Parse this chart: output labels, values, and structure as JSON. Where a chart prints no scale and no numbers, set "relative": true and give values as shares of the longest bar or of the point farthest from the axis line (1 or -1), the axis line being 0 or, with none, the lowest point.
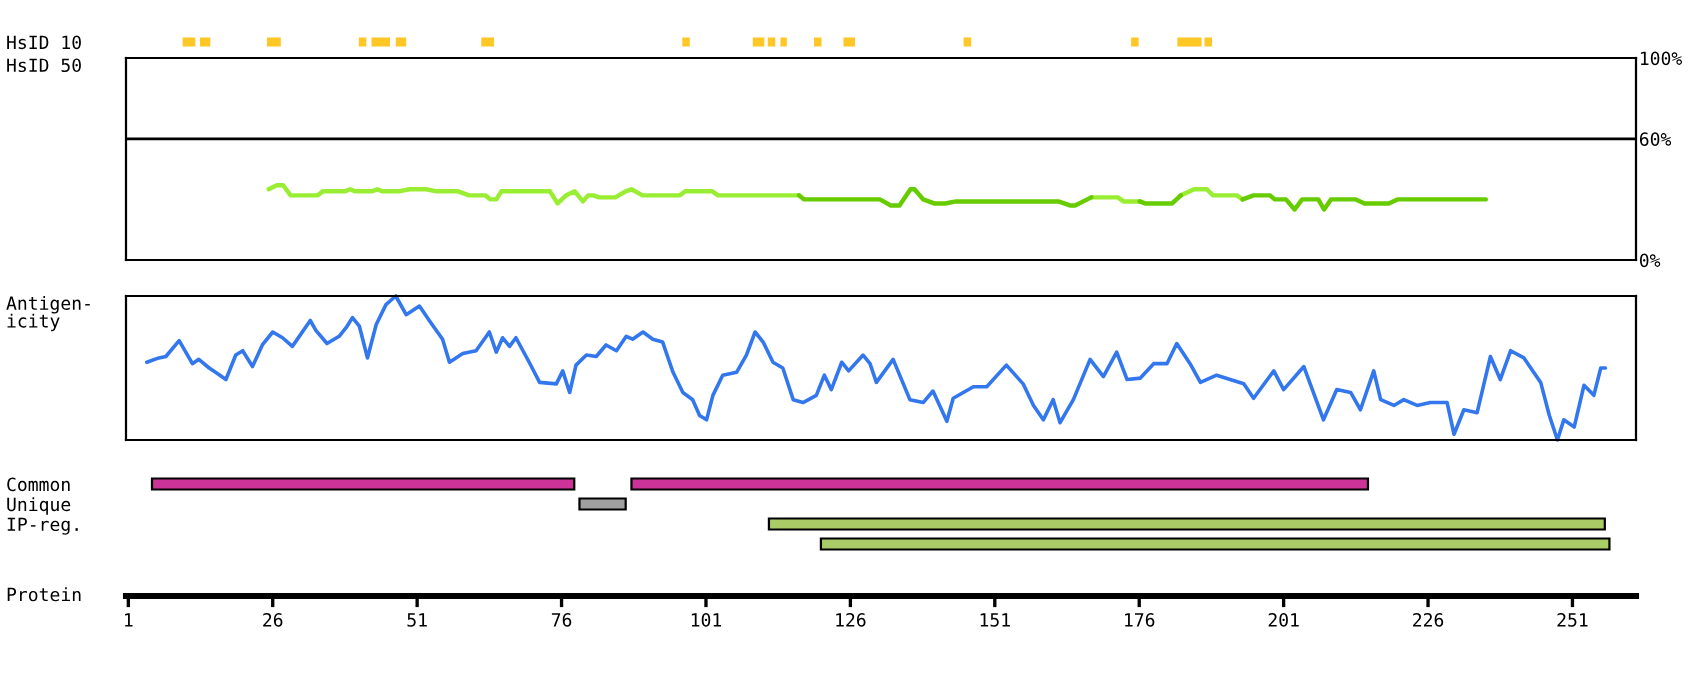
{
  "chart_data": [
    {
      "type": "bar",
      "orientation": "horizontal",
      "categories": [
        "HsID 10"
      ],
      "xlim": [
        0.6,
        262
      ],
      "tick_labels": "y",
      "series": [
        {
          "color": "#ffc726",
          "base": [
            10.4
          ],
          "values": [
            2.2
          ]
        },
        {
          "color": "#ffc726",
          "base": [
            13.4
          ],
          "values": [
            1.8
          ]
        },
        {
          "color": "#ffc726",
          "base": [
            25.0
          ],
          "values": [
            2.4
          ]
        },
        {
          "color": "#ffc726",
          "base": [
            40.9
          ],
          "values": [
            1.3
          ]
        },
        {
          "color": "#ffc726",
          "base": [
            43.1
          ],
          "values": [
            3.2
          ]
        },
        {
          "color": "#ffc726",
          "base": [
            47.3
          ],
          "values": [
            1.8
          ]
        },
        {
          "color": "#ffc726",
          "base": [
            62.1
          ],
          "values": [
            2.2
          ]
        },
        {
          "color": "#ffc726",
          "base": [
            96.9
          ],
          "values": [
            1.3
          ]
        },
        {
          "color": "#ffc726",
          "base": [
            109.1
          ],
          "values": [
            2.0
          ]
        },
        {
          "color": "#ffc726",
          "base": [
            111.7
          ],
          "values": [
            1.3
          ]
        },
        {
          "color": "#ffc726",
          "base": [
            113.9
          ],
          "values": [
            1.1
          ]
        },
        {
          "color": "#ffc726",
          "base": [
            119.7
          ],
          "values": [
            1.3
          ]
        },
        {
          "color": "#ffc726",
          "base": [
            124.8
          ],
          "values": [
            2.0
          ]
        },
        {
          "color": "#ffc726",
          "base": [
            145.6
          ],
          "values": [
            1.3
          ]
        },
        {
          "color": "#ffc726",
          "base": [
            174.6
          ],
          "values": [
            1.3
          ]
        },
        {
          "color": "#ffc726",
          "base": [
            182.6
          ],
          "values": [
            4.2
          ]
        },
        {
          "color": "#ffc726",
          "base": [
            187.3
          ],
          "values": [
            1.3
          ]
        }
      ]
    },
    {
      "type": "line",
      "ylabel": "HsID 50",
      "xlim": [
        0.6,
        262
      ],
      "ylim": [
        0,
        100
      ],
      "yticks": [
        {
          "value": 0,
          "label": "0%"
        },
        {
          "value": 60,
          "label": "60%"
        },
        {
          "value": 100,
          "label": "100%"
        }
      ],
      "tick_labels": "y",
      "ref_lines": [
        {
          "axis": "y",
          "value": 60,
          "color": "#000000"
        }
      ],
      "x": [
        25.3,
        26.7,
        27.8,
        29.1,
        33.8,
        34.7,
        38.5,
        39.4,
        40.3,
        43.1,
        44.1,
        45.0,
        47.8,
        49.7,
        52.5,
        54.4,
        58.1,
        60.0,
        62.8,
        63.7,
        64.7,
        65.6,
        74.0,
        75.3,
        76.8,
        78.3,
        79.7,
        80.6,
        81.5,
        82.5,
        85.3,
        87.1,
        88.1,
        90.0,
        96.5,
        97.4,
        102.1,
        103.1,
        117.1,
        118.0,
        131.1,
        133.0,
        134.5,
        136.4,
        137.1,
        138.6,
        140.5,
        142.4,
        144.3,
        162.0,
        164.0,
        164.9,
        167.7,
        172.3,
        173.3,
        176.1,
        177.0,
        181.7,
        183.2,
        185.5,
        187.7,
        188.8,
        192.9,
        193.9,
        195.8,
        198.6,
        199.5,
        201.4,
        202.9,
        204.2,
        207.0,
        208.0,
        209.2,
        213.5,
        215.0,
        219.2,
        220.7,
        236.0
      ],
      "series": [
        {
          "color": "#99ee33",
          "values": [
            35,
            37,
            37,
            32,
            32,
            34,
            34,
            35,
            34,
            34,
            35,
            34,
            34,
            35,
            35,
            34,
            34,
            32,
            32,
            30,
            30,
            34,
            34,
            28,
            32,
            34,
            29,
            32,
            32,
            31,
            31,
            34,
            35,
            32,
            32,
            34,
            34,
            32,
            32,
            null,
            null,
            null,
            null,
            null,
            null,
            null,
            null,
            null,
            null,
            null,
            null,
            null,
            31,
            31,
            29,
            29,
            null,
            null,
            32,
            35,
            35,
            32,
            32,
            30,
            null,
            null,
            null,
            null,
            null,
            null,
            null,
            null,
            null,
            null,
            null,
            null,
            null,
            null
          ]
        },
        {
          "color": "#66cc00",
          "values": [
            null,
            null,
            null,
            null,
            null,
            null,
            null,
            null,
            null,
            null,
            null,
            null,
            null,
            null,
            null,
            null,
            null,
            null,
            null,
            null,
            null,
            null,
            null,
            null,
            null,
            null,
            null,
            null,
            null,
            null,
            null,
            null,
            null,
            null,
            null,
            null,
            null,
            null,
            32,
            30,
            30,
            27,
            27,
            35,
            35,
            30,
            28,
            28,
            29,
            29,
            27,
            27,
            31,
            null,
            null,
            29,
            28,
            28,
            32,
            null,
            null,
            null,
            null,
            30,
            32,
            32,
            30,
            30,
            25,
            30,
            30,
            25,
            30,
            30,
            28,
            28,
            30,
            30
          ]
        }
      ]
    },
    {
      "type": "line",
      "ylabel": "Antigen-\nicity",
      "relative": true,
      "xlim": [
        0.6,
        262
      ],
      "tick_labels": false,
      "x": [
        4.2,
        6.3,
        7.5,
        9.8,
        12.1,
        13.2,
        15.0,
        16.1,
        17.9,
        19.6,
        20.8,
        22.5,
        24.2,
        26.0,
        27.7,
        29.4,
        32.5,
        33.5,
        35.4,
        37.5,
        38.7,
        39.8,
        41.0,
        42.4,
        43.9,
        45.6,
        47.3,
        49.1,
        51.4,
        53.1,
        55.4,
        56.6,
        58.9,
        61.2,
        63.5,
        64.7,
        65.8,
        67.0,
        68.1,
        70.4,
        72.2,
        75.1,
        76.2,
        77.4,
        78.5,
        80.3,
        82.0,
        83.7,
        85.5,
        87.2,
        88.3,
        90.1,
        91.8,
        93.5,
        95.3,
        97.0,
        98.7,
        99.9,
        101.1,
        102.2,
        103.9,
        106.3,
        108.0,
        109.5,
        110.9,
        112.6,
        114.3,
        116.1,
        117.8,
        120.1,
        121.5,
        122.7,
        124.5,
        125.7,
        128.2,
        129.4,
        130.5,
        133.4,
        136.3,
        138.6,
        140.3,
        142.7,
        143.8,
        147.3,
        149.6,
        153.0,
        155.9,
        157.7,
        159.4,
        161.1,
        162.3,
        164.6,
        167.5,
        169.8,
        172.1,
        173.9,
        176.2,
        178.5,
        180.8,
        182.5,
        184.8,
        186.6,
        189.4,
        194.1,
        195.8,
        199.3,
        201.0,
        204.5,
        207.9,
        210.2,
        212.6,
        214.3,
        216.6,
        217.8,
        220.1,
        221.8,
        224.1,
        226.4,
        229.3,
        230.5,
        232.2,
        234.5,
        236.8,
        238.5,
        240.3,
        242.6,
        245.5,
        247.0,
        248.4,
        249.5,
        251.3,
        253.0,
        254.7,
        255.9,
        256.7
      ],
      "series": [
        {
          "color": "#3377ee",
          "values": [
            0.54,
            0.57,
            0.58,
            0.69,
            0.53,
            0.56,
            0.5,
            0.47,
            0.42,
            0.59,
            0.62,
            0.51,
            0.66,
            0.75,
            0.71,
            0.65,
            0.83,
            0.76,
            0.67,
            0.72,
            0.78,
            0.85,
            0.79,
            0.57,
            0.8,
            0.94,
            1.0,
            0.87,
            0.93,
            0.83,
            0.7,
            0.54,
            0.6,
            0.62,
            0.75,
            0.61,
            0.71,
            0.65,
            0.71,
            0.54,
            0.4,
            0.39,
            0.48,
            0.33,
            0.52,
            0.59,
            0.58,
            0.66,
            0.62,
            0.72,
            0.7,
            0.75,
            0.7,
            0.68,
            0.47,
            0.33,
            0.28,
            0.17,
            0.14,
            0.31,
            0.45,
            0.47,
            0.59,
            0.75,
            0.68,
            0.54,
            0.5,
            0.28,
            0.26,
            0.31,
            0.45,
            0.35,
            0.54,
            0.48,
            0.59,
            0.53,
            0.4,
            0.56,
            0.28,
            0.26,
            0.34,
            0.13,
            0.29,
            0.37,
            0.37,
            0.52,
            0.39,
            0.24,
            0.14,
            0.28,
            0.12,
            0.28,
            0.56,
            0.44,
            0.61,
            0.42,
            0.43,
            0.53,
            0.53,
            0.67,
            0.53,
            0.4,
            0.45,
            0.39,
            0.29,
            0.48,
            0.35,
            0.51,
            0.14,
            0.35,
            0.33,
            0.21,
            0.48,
            0.28,
            0.24,
            0.28,
            0.24,
            0.26,
            0.26,
            0.04,
            0.21,
            0.19,
            0.58,
            0.42,
            0.62,
            0.57,
            0.4,
            0.17,
            0.0,
            0.14,
            0.09,
            0.38,
            0.31,
            0.5,
            0.5
          ]
        }
      ]
    },
    {
      "type": "bar",
      "orientation": "horizontal",
      "categories": [
        "Common",
        "Unique",
        "IP-reg.",
        null
      ],
      "xlabel": "Protein",
      "xlim": [
        0.6,
        262
      ],
      "xticks": [
        1,
        26,
        51,
        76,
        101,
        126,
        151,
        176,
        201,
        226,
        251
      ],
      "series": [
        {
          "color": "#cc3399",
          "base": [
            5.1,
            null,
            null,
            null
          ],
          "values": [
            73.1,
            null,
            null,
            null
          ]
        },
        {
          "color": "#cc3399",
          "base": [
            88.1,
            null,
            null,
            null
          ],
          "values": [
            127.5,
            null,
            null,
            null
          ]
        },
        {
          "color": "#a0a0a0",
          "base": [
            null,
            79.1,
            null,
            null
          ],
          "values": [
            null,
            8.0,
            null,
            null
          ]
        },
        {
          "color": "#aacc66",
          "base": [
            null,
            null,
            111.9,
            120.9
          ],
          "values": [
            null,
            null,
            144.7,
            136.5
          ]
        }
      ]
    }
  ]
}
